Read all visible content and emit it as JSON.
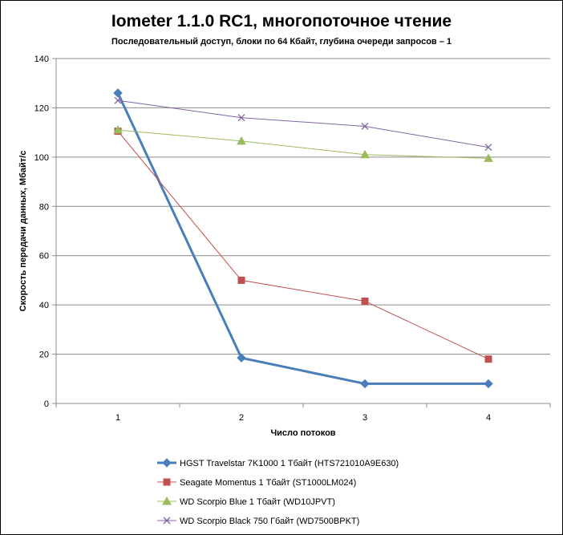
{
  "chart_data": {
    "type": "line",
    "title": "Iometer 1.1.0 RC1, многопоточное чтение",
    "subtitle": "Последовательный  доступ, блоки по 64 Кбайт,  глубина очереди запросов  – 1",
    "xlabel": "Число  потоков",
    "ylabel": "Скорость  передачи данных, Мбайт/с",
    "categories": [
      "1",
      "2",
      "3",
      "4"
    ],
    "ylim": [
      0,
      140
    ],
    "yticks": [
      0,
      20,
      40,
      60,
      80,
      100,
      120,
      140
    ],
    "grid": true,
    "legend_position": "bottom",
    "series": [
      {
        "name": "HGST Travelstar 7K1000 1 Тбайт (HTS721010A9E630)",
        "values": [
          126,
          18.5,
          8,
          8
        ],
        "color": "#4a7ebb",
        "marker": "diamond"
      },
      {
        "name": "Seagate Momentus 1 Тбайт  (ST1000LM024)",
        "values": [
          110.5,
          50,
          41.5,
          18
        ],
        "color": "#c0504d",
        "marker": "square"
      },
      {
        "name": "WD Scorpio Blue 1 Тбайт (WD10JPVT)",
        "values": [
          111,
          106.5,
          101,
          99.5
        ],
        "color": "#9bbb59",
        "marker": "triangle"
      },
      {
        "name": "WD Scorpio Black 750 Гбайт (WD7500BPKT)",
        "values": [
          123,
          116,
          112.5,
          104
        ],
        "color": "#8064a2",
        "marker": "x"
      }
    ]
  }
}
